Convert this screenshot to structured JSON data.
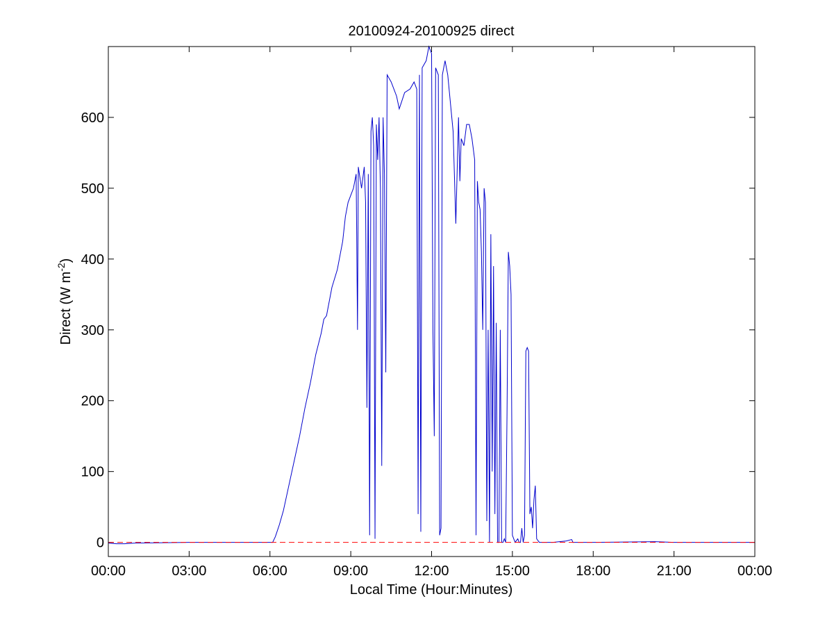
{
  "chart_data": {
    "type": "line",
    "title": "20100924-20100925 direct",
    "xlabel": "Local Time (Hour:Minutes)",
    "ylabel_main": "Direct (W m",
    "ylabel_sup": "-2",
    "ylabel_close": ")",
    "xlim_hours": [
      0,
      24
    ],
    "ylim": [
      -20,
      700
    ],
    "xticks": [
      {
        "hour": 0,
        "label": "00:00"
      },
      {
        "hour": 3,
        "label": "03:00"
      },
      {
        "hour": 6,
        "label": "06:00"
      },
      {
        "hour": 9,
        "label": "09:00"
      },
      {
        "hour": 12,
        "label": "12:00"
      },
      {
        "hour": 15,
        "label": "15:00"
      },
      {
        "hour": 18,
        "label": "18:00"
      },
      {
        "hour": 21,
        "label": "21:00"
      },
      {
        "hour": 24,
        "label": "00:00"
      }
    ],
    "yticks": [
      0,
      100,
      200,
      300,
      400,
      500,
      600
    ],
    "grid": false,
    "series": [
      {
        "style": "solid",
        "color": "#0000cc",
        "points": [
          [
            0.0,
            -1
          ],
          [
            0.3,
            -2
          ],
          [
            0.6,
            -2
          ],
          [
            1.0,
            -1
          ],
          [
            1.1,
            -1
          ],
          [
            3.0,
            0
          ],
          [
            6.0,
            0
          ],
          [
            6.1,
            0
          ],
          [
            6.2,
            8
          ],
          [
            6.35,
            25
          ],
          [
            6.5,
            45
          ],
          [
            6.7,
            80
          ],
          [
            6.9,
            115
          ],
          [
            7.1,
            150
          ],
          [
            7.3,
            190
          ],
          [
            7.5,
            225
          ],
          [
            7.7,
            265
          ],
          [
            7.9,
            295
          ],
          [
            8.0,
            315
          ],
          [
            8.1,
            320
          ],
          [
            8.3,
            360
          ],
          [
            8.5,
            385
          ],
          [
            8.7,
            425
          ],
          [
            8.8,
            460
          ],
          [
            8.9,
            480
          ],
          [
            9.0,
            490
          ],
          [
            9.1,
            500
          ],
          [
            9.2,
            520
          ],
          [
            9.25,
            300
          ],
          [
            9.28,
            530
          ],
          [
            9.4,
            500
          ],
          [
            9.5,
            530
          ],
          [
            9.55,
            480
          ],
          [
            9.6,
            190
          ],
          [
            9.65,
            520
          ],
          [
            9.7,
            10
          ],
          [
            9.75,
            580
          ],
          [
            9.8,
            600
          ],
          [
            9.85,
            560
          ],
          [
            9.9,
            5
          ],
          [
            9.95,
            590
          ],
          [
            10.0,
            540
          ],
          [
            10.05,
            600
          ],
          [
            10.1,
            500
          ],
          [
            10.15,
            108
          ],
          [
            10.2,
            600
          ],
          [
            10.25,
            520
          ],
          [
            10.3,
            240
          ],
          [
            10.35,
            660
          ],
          [
            10.5,
            650
          ],
          [
            10.7,
            630
          ],
          [
            10.8,
            612
          ],
          [
            11.0,
            635
          ],
          [
            11.2,
            640
          ],
          [
            11.35,
            650
          ],
          [
            11.45,
            640
          ],
          [
            11.5,
            40
          ],
          [
            11.55,
            660
          ],
          [
            11.6,
            15
          ],
          [
            11.65,
            670
          ],
          [
            11.8,
            680
          ],
          [
            11.9,
            700
          ],
          [
            12.0,
            690
          ],
          [
            12.05,
            300
          ],
          [
            12.1,
            150
          ],
          [
            12.15,
            670
          ],
          [
            12.25,
            660
          ],
          [
            12.3,
            10
          ],
          [
            12.35,
            20
          ],
          [
            12.4,
            660
          ],
          [
            12.5,
            680
          ],
          [
            12.6,
            660
          ],
          [
            12.7,
            620
          ],
          [
            12.8,
            580
          ],
          [
            12.9,
            450
          ],
          [
            13.0,
            600
          ],
          [
            13.05,
            510
          ],
          [
            13.1,
            570
          ],
          [
            13.2,
            560
          ],
          [
            13.3,
            590
          ],
          [
            13.4,
            590
          ],
          [
            13.5,
            570
          ],
          [
            13.6,
            540
          ],
          [
            13.65,
            10
          ],
          [
            13.7,
            510
          ],
          [
            13.75,
            480
          ],
          [
            13.8,
            470
          ],
          [
            13.85,
            410
          ],
          [
            13.9,
            300
          ],
          [
            13.95,
            500
          ],
          [
            14.0,
            480
          ],
          [
            14.05,
            30
          ],
          [
            14.1,
            300
          ],
          [
            14.15,
            0
          ],
          [
            14.2,
            435
          ],
          [
            14.25,
            100
          ],
          [
            14.3,
            390
          ],
          [
            14.35,
            40
          ],
          [
            14.4,
            310
          ],
          [
            14.45,
            0
          ],
          [
            14.5,
            0
          ],
          [
            14.55,
            300
          ],
          [
            14.6,
            0
          ],
          [
            14.65,
            0
          ],
          [
            14.7,
            5
          ],
          [
            14.75,
            0
          ],
          [
            14.8,
            180
          ],
          [
            14.85,
            410
          ],
          [
            14.9,
            390
          ],
          [
            14.95,
            350
          ],
          [
            15.0,
            10
          ],
          [
            15.1,
            0
          ],
          [
            15.2,
            5
          ],
          [
            15.25,
            0
          ],
          [
            15.3,
            0
          ],
          [
            15.35,
            20
          ],
          [
            15.4,
            0
          ],
          [
            15.45,
            10
          ],
          [
            15.5,
            270
          ],
          [
            15.55,
            275
          ],
          [
            15.6,
            270
          ],
          [
            15.65,
            40
          ],
          [
            15.7,
            50
          ],
          [
            15.75,
            20
          ],
          [
            15.8,
            60
          ],
          [
            15.85,
            80
          ],
          [
            15.9,
            5
          ],
          [
            16.0,
            0
          ],
          [
            16.5,
            0
          ],
          [
            17.0,
            2
          ],
          [
            17.2,
            4
          ],
          [
            17.25,
            0
          ],
          [
            18.0,
            0
          ],
          [
            20.3,
            1
          ],
          [
            21.0,
            0
          ],
          [
            24.0,
            0
          ]
        ]
      },
      {
        "style": "dashed",
        "color": "#ff0000",
        "points": [
          [
            0.0,
            0
          ],
          [
            24.0,
            0
          ]
        ]
      }
    ]
  }
}
